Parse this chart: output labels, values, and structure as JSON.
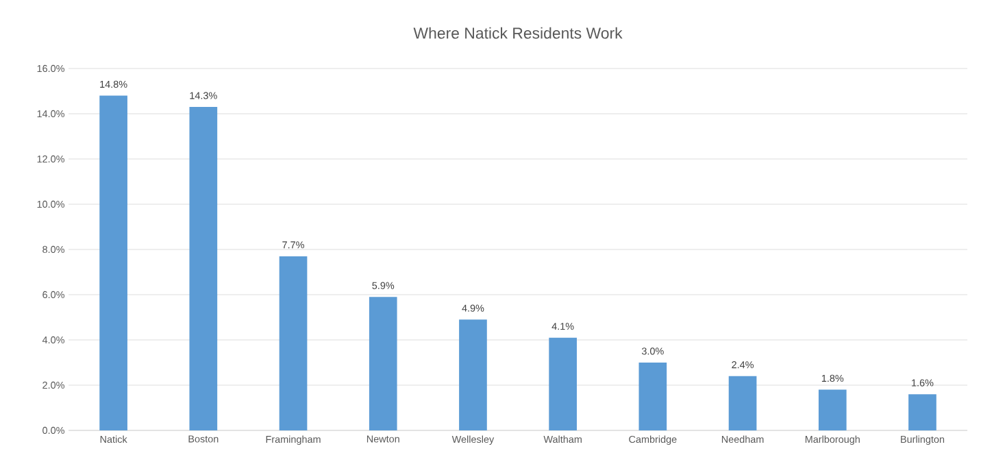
{
  "chart_data": {
    "type": "bar",
    "title": "Where Natick Residents Work",
    "categories": [
      "Natick",
      "Boston",
      "Framingham",
      "Newton",
      "Wellesley",
      "Waltham",
      "Cambridge",
      "Needham",
      "Marlborough",
      "Burlington"
    ],
    "values": [
      14.8,
      14.3,
      7.7,
      5.9,
      4.9,
      4.1,
      3.0,
      2.4,
      1.8,
      1.6
    ],
    "value_labels": [
      "14.8%",
      "14.3%",
      "7.7%",
      "5.9%",
      "4.9%",
      "4.1%",
      "3.0%",
      "2.4%",
      "1.8%",
      "1.6%"
    ],
    "color": "#5b9bd5",
    "ylim": [
      0,
      16
    ],
    "yticks": [
      {
        "value": 0,
        "label": "0.0%"
      },
      {
        "value": 2,
        "label": "2.0%"
      },
      {
        "value": 4,
        "label": "4.0%"
      },
      {
        "value": 6,
        "label": "6.0%"
      },
      {
        "value": 8,
        "label": "8.0%"
      },
      {
        "value": 10,
        "label": "10.0%"
      },
      {
        "value": 12,
        "label": "12.0%"
      },
      {
        "value": 14,
        "label": "14.0%"
      },
      {
        "value": 16,
        "label": "16.0%"
      }
    ],
    "grid": "y"
  }
}
